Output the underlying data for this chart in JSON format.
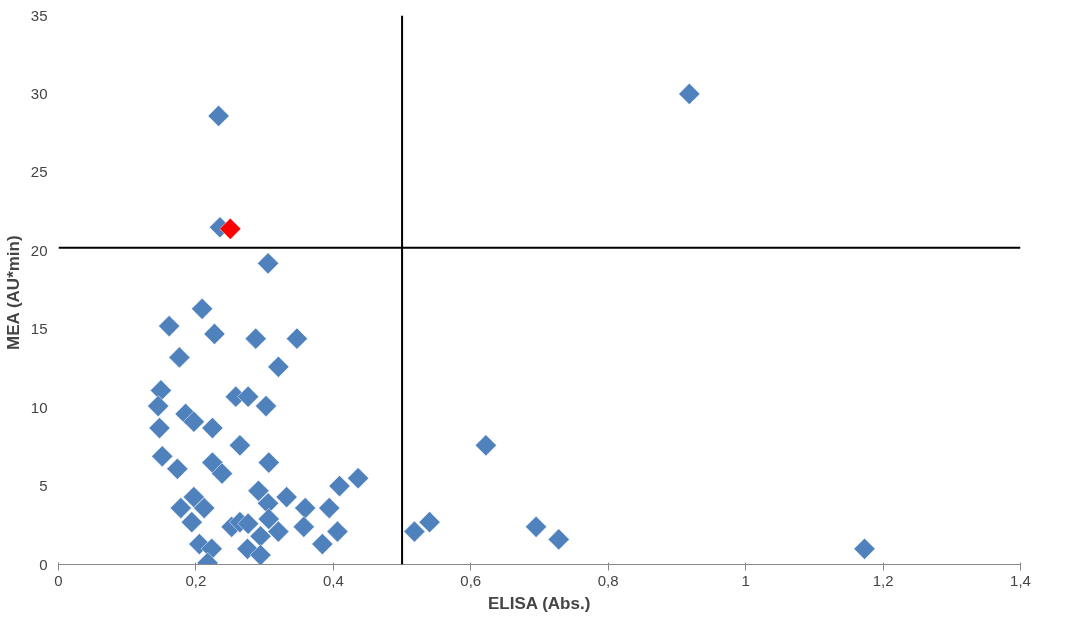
{
  "chart_data": {
    "type": "scatter",
    "xlabel": "ELISA (Abs.)",
    "ylabel": "MEA  (AU*min)",
    "marker": "diamond",
    "grid": false,
    "xlim": [
      0,
      1.4
    ],
    "ylim": [
      0,
      35
    ],
    "xticks": [
      0,
      {
        "value": 0.2,
        "label": "0,2"
      },
      {
        "value": 0.4,
        "label": "0,4"
      },
      {
        "value": 0.6,
        "label": "0,6"
      },
      {
        "value": 0.8,
        "label": "0,8"
      },
      1,
      {
        "value": 1.2,
        "label": "1,2"
      },
      {
        "value": 1.4,
        "label": "1,4"
      }
    ],
    "yticks": [
      0,
      5,
      10,
      15,
      20,
      25,
      30,
      35
    ],
    "ref_lines": [
      {
        "axis": "x",
        "value": 0.5,
        "color": "#000000"
      },
      {
        "axis": "y",
        "value": 20.2,
        "color": "#000000"
      }
    ],
    "series": [
      {
        "color": "#4f81bd",
        "x": [
          0.918,
          0.233,
          0.235,
          0.305,
          0.209,
          0.161,
          0.227,
          0.287,
          0.347,
          0.176,
          0.32,
          0.149,
          0.145,
          0.258,
          0.276,
          0.302,
          0.147,
          0.185,
          0.197,
          0.224,
          0.264,
          0.151,
          0.173,
          0.224,
          0.238,
          0.306,
          0.197,
          0.178,
          0.212,
          0.194,
          0.205,
          0.223,
          0.217,
          0.252,
          0.264,
          0.276,
          0.291,
          0.305,
          0.306,
          0.32,
          0.294,
          0.275,
          0.294,
          0.332,
          0.359,
          0.357,
          0.394,
          0.406,
          0.384,
          0.409,
          0.436,
          0.518,
          0.54,
          0.622,
          0.695,
          0.728,
          1.173
        ],
        "values": [
          30.0,
          28.6,
          21.5,
          19.2,
          16.3,
          15.2,
          14.7,
          14.4,
          14.4,
          13.2,
          12.6,
          11.1,
          10.1,
          10.7,
          10.7,
          10.1,
          8.7,
          9.6,
          9.1,
          8.7,
          7.6,
          6.9,
          6.1,
          6.5,
          5.8,
          6.5,
          4.3,
          3.6,
          3.6,
          2.7,
          1.3,
          1.0,
          0.1,
          2.4,
          2.7,
          2.6,
          4.7,
          3.9,
          2.9,
          2.1,
          1.8,
          1.0,
          0.6,
          4.3,
          3.6,
          2.4,
          3.6,
          2.1,
          1.3,
          5.0,
          5.5,
          2.1,
          2.7,
          7.6,
          2.4,
          1.6,
          1.0
        ]
      },
      {
        "color": "#ff0000",
        "x": [
          0.25
        ],
        "values": [
          21.4
        ]
      }
    ]
  }
}
